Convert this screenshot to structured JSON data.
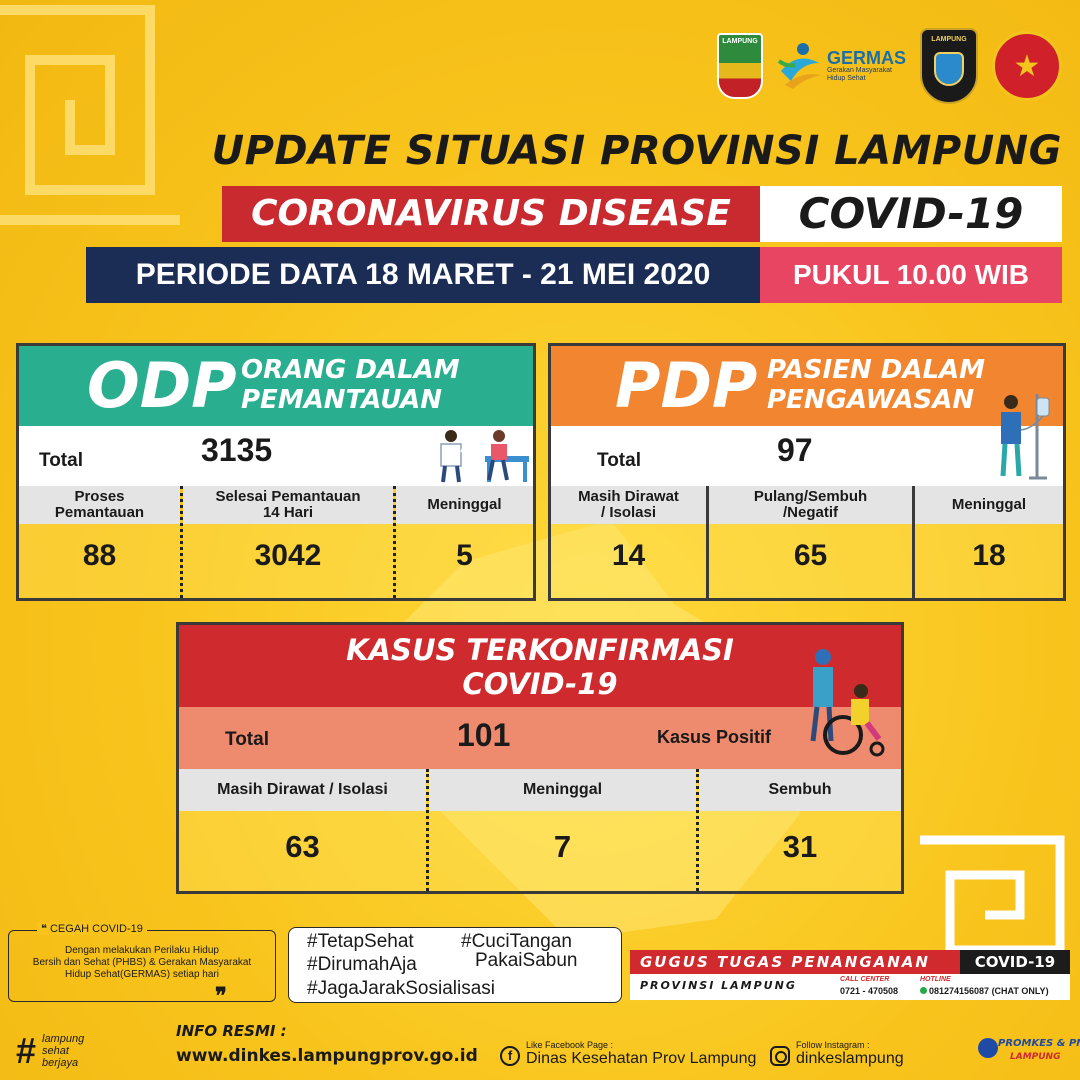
{
  "header": {
    "title": "UPDATE SITUASI PROVINSI LAMPUNG",
    "disease_label": "CORONAVIRUS DISEASE",
    "disease_code": "COVID-19",
    "period": "PERIODE DATA 18 MARET - 21 MEI 2020",
    "time": "PUKUL 10.00 WIB"
  },
  "logos": {
    "lampung_label": "LAMPUNG",
    "germas_name": "GERMAS",
    "germas_sub1": "Gerakan Masyarakat",
    "germas_sub2": "Hidup Sehat",
    "polda_label": "LAMPUNG"
  },
  "odp": {
    "abbr": "ODP",
    "name_line1": "ORANG DALAM",
    "name_line2": "PEMANTAUAN",
    "total_label": "Total",
    "total": "3135",
    "cols": [
      {
        "label_line1": "Proses",
        "label_line2": "Pemantauan",
        "value": "88"
      },
      {
        "label_line1": "Selesai Pemantauan",
        "label_line2": "14 Hari",
        "value": "3042"
      },
      {
        "label_line1": "Meninggal",
        "label_line2": "",
        "value": "5"
      }
    ]
  },
  "pdp": {
    "abbr": "PDP",
    "name_line1": "PASIEN DALAM",
    "name_line2": "PENGAWASAN",
    "total_label": "Total",
    "total": "97",
    "cols": [
      {
        "label_line1": "Masih Dirawat",
        "label_line2": "/ Isolasi",
        "value": "14"
      },
      {
        "label_line1": "Pulang/Sembuh",
        "label_line2": "/Negatif",
        "value": "65"
      },
      {
        "label_line1": "Meninggal",
        "label_line2": "",
        "value": "18"
      }
    ]
  },
  "kasus": {
    "title_line1": "KASUS TERKONFIRMASI",
    "title_line2": "COVID-19",
    "total_label": "Total",
    "total": "101",
    "positive_label": "Kasus Positif",
    "cols": [
      {
        "label": "Masih Dirawat / Isolasi",
        "value": "63"
      },
      {
        "label": "Meninggal",
        "value": "7"
      },
      {
        "label": "Sembuh",
        "value": "31"
      }
    ]
  },
  "footer": {
    "cegah_title": "CEGAH COVID-19",
    "cegah_line1": "Dengan melakukan Perilaku Hidup",
    "cegah_line2": "Bersih dan Sehat (PHBS) & Gerakan Masyarakat",
    "cegah_line3": "Hidup Sehat(GERMAS) setiap hari",
    "hashtags": [
      "#TetapSehat",
      "#CuciTangan",
      "#DirumahAja",
      "PakaiSabun",
      "#JagaJarakSosialisasi"
    ],
    "gugus_title": "GUGUS TUGAS PENANGANAN",
    "gugus_code": "COVID-19",
    "gugus_prov": "PROVINSI LAMPUNG",
    "call_center_label": "CALL CENTER",
    "call_center": "0721 - 470508",
    "hotline_label": "HOTLINE",
    "hotline": "081274156087 (CHAT ONLY)",
    "slogan": [
      "lampung",
      "sehat",
      "berjaya"
    ],
    "info_label": "INFO RESMI :",
    "website": "www.dinkes.lampungprov.go.id",
    "fb_label": "Like Facebook Page :",
    "fb_account": "Dinas Kesehatan Prov Lampung",
    "ig_label": "Follow Instagram :",
    "ig_account": "dinkeslampung",
    "promkes_line1": "PROMKES & PM",
    "promkes_line2": "LAMPUNG"
  },
  "colors": {
    "background": "#f8c41c",
    "odp_head": "#2aae90",
    "pdp_head": "#f28530",
    "kasus_head": "#cf2b2e",
    "navy": "#1c2d55",
    "pink": "#e84563"
  }
}
